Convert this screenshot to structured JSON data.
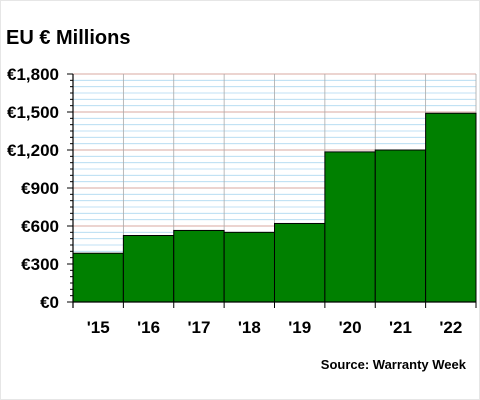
{
  "chart_data": {
    "type": "bar",
    "title": "EU € Millions",
    "categories": [
      "'15",
      "'16",
      "'17",
      "'18",
      "'19",
      "'20",
      "'21",
      "'22"
    ],
    "values": [
      385,
      525,
      565,
      550,
      620,
      1185,
      1200,
      1490
    ],
    "ylim": [
      0,
      1800
    ],
    "yticks": [
      0,
      300,
      600,
      900,
      1200,
      1500,
      1800
    ],
    "ytick_labels": [
      "€0",
      "€300",
      "€600",
      "€900",
      "€1,200",
      "€1,500",
      "€1,800"
    ],
    "grid": true,
    "source": "Source: Warranty Week",
    "colors": {
      "bar": "#008000",
      "minor_grid": "#add8f0",
      "major_grid": "#d9a8a0",
      "vertical_grid": "#a9a9a9"
    }
  }
}
